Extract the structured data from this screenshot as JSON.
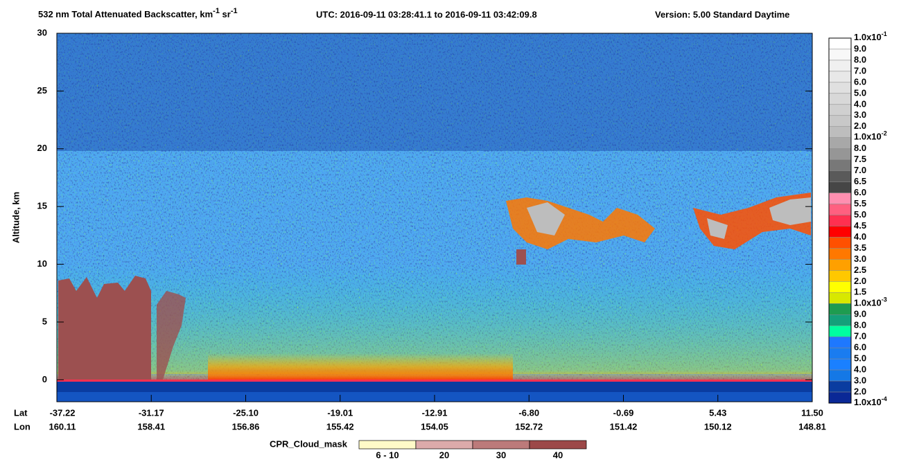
{
  "chart_data": {
    "type": "heatmap",
    "title": [
      "532 nm Total Attenuated Backscatter, km",
      "-1",
      " sr",
      "-1"
    ],
    "utc": "UTC:  2016-09-11 03:28:41.1  to  2016-09-11 03:42:09.8",
    "version": "Version: 5.00  Standard  Daytime",
    "ylabel": "Altitude, km",
    "ylim": [
      -1.9,
      30
    ],
    "yticks": [
      0,
      5,
      10,
      15,
      20,
      25,
      30
    ],
    "lat_label": "Lat",
    "lon_label": "Lon",
    "xticks": [
      {
        "lat": "-37.22",
        "lon": "160.11"
      },
      {
        "lat": "-31.17",
        "lon": "158.41"
      },
      {
        "lat": "-25.10",
        "lon": "156.86"
      },
      {
        "lat": "-19.01",
        "lon": "155.42"
      },
      {
        "lat": "-12.91",
        "lon": "154.05"
      },
      {
        "lat": "-6.80",
        "lon": "152.72"
      },
      {
        "lat": "-0.69",
        "lon": "151.42"
      },
      {
        "lat": "5.43",
        "lon": "150.12"
      },
      {
        "lat": "11.50",
        "lon": "148.81"
      }
    ],
    "colorbar": {
      "labels": [
        {
          "mantissa": "1.0x10",
          "exponent": "-1"
        },
        "9.0",
        "8.0",
        "7.0",
        "6.0",
        "5.0",
        "4.0",
        "3.0",
        "2.0",
        {
          "mantissa": "1.0x10",
          "exponent": "-2"
        },
        "8.0",
        "7.5",
        "7.0",
        "6.5",
        "6.0",
        "5.5",
        "5.0",
        "4.5",
        "4.0",
        "3.5",
        "3.0",
        "2.5",
        "2.0",
        "1.5",
        {
          "mantissa": "1.0x10",
          "exponent": "-3"
        },
        "9.0",
        "8.0",
        "7.0",
        "6.0",
        "5.0",
        "4.0",
        "3.0",
        "2.0",
        {
          "mantissa": "1.0x10",
          "exponent": "-4"
        }
      ],
      "colors": [
        "#ffffff",
        "#f8f8f8",
        "#f0f0f0",
        "#e8e8e8",
        "#e0e0e0",
        "#d8d8d8",
        "#d0d0d0",
        "#c8c8c8",
        "#bdbdbd",
        "#a8a8a8",
        "#969696",
        "#787878",
        "#5a5a5a",
        "#464646",
        "#ff8fb0",
        "#ff6080",
        "#ff3050",
        "#ff0000",
        "#ff5000",
        "#ff7800",
        "#ffa000",
        "#ffc800",
        "#ffff00",
        "#d8e800",
        "#1e9c50",
        "#14a07a",
        "#00ffa0",
        "#1e78ff",
        "#1a7cf0",
        "#1a80ff",
        "#1478e6",
        "#0a3ca0",
        "#0a2896"
      ]
    },
    "cpr_legend": {
      "title": "CPR_Cloud_mask",
      "labels": [
        "6 - 10",
        "20",
        "30",
        "40"
      ],
      "colors": [
        "#fffac8",
        "#dcaaaa",
        "#bc7a7a",
        "#9c4848"
      ]
    }
  }
}
